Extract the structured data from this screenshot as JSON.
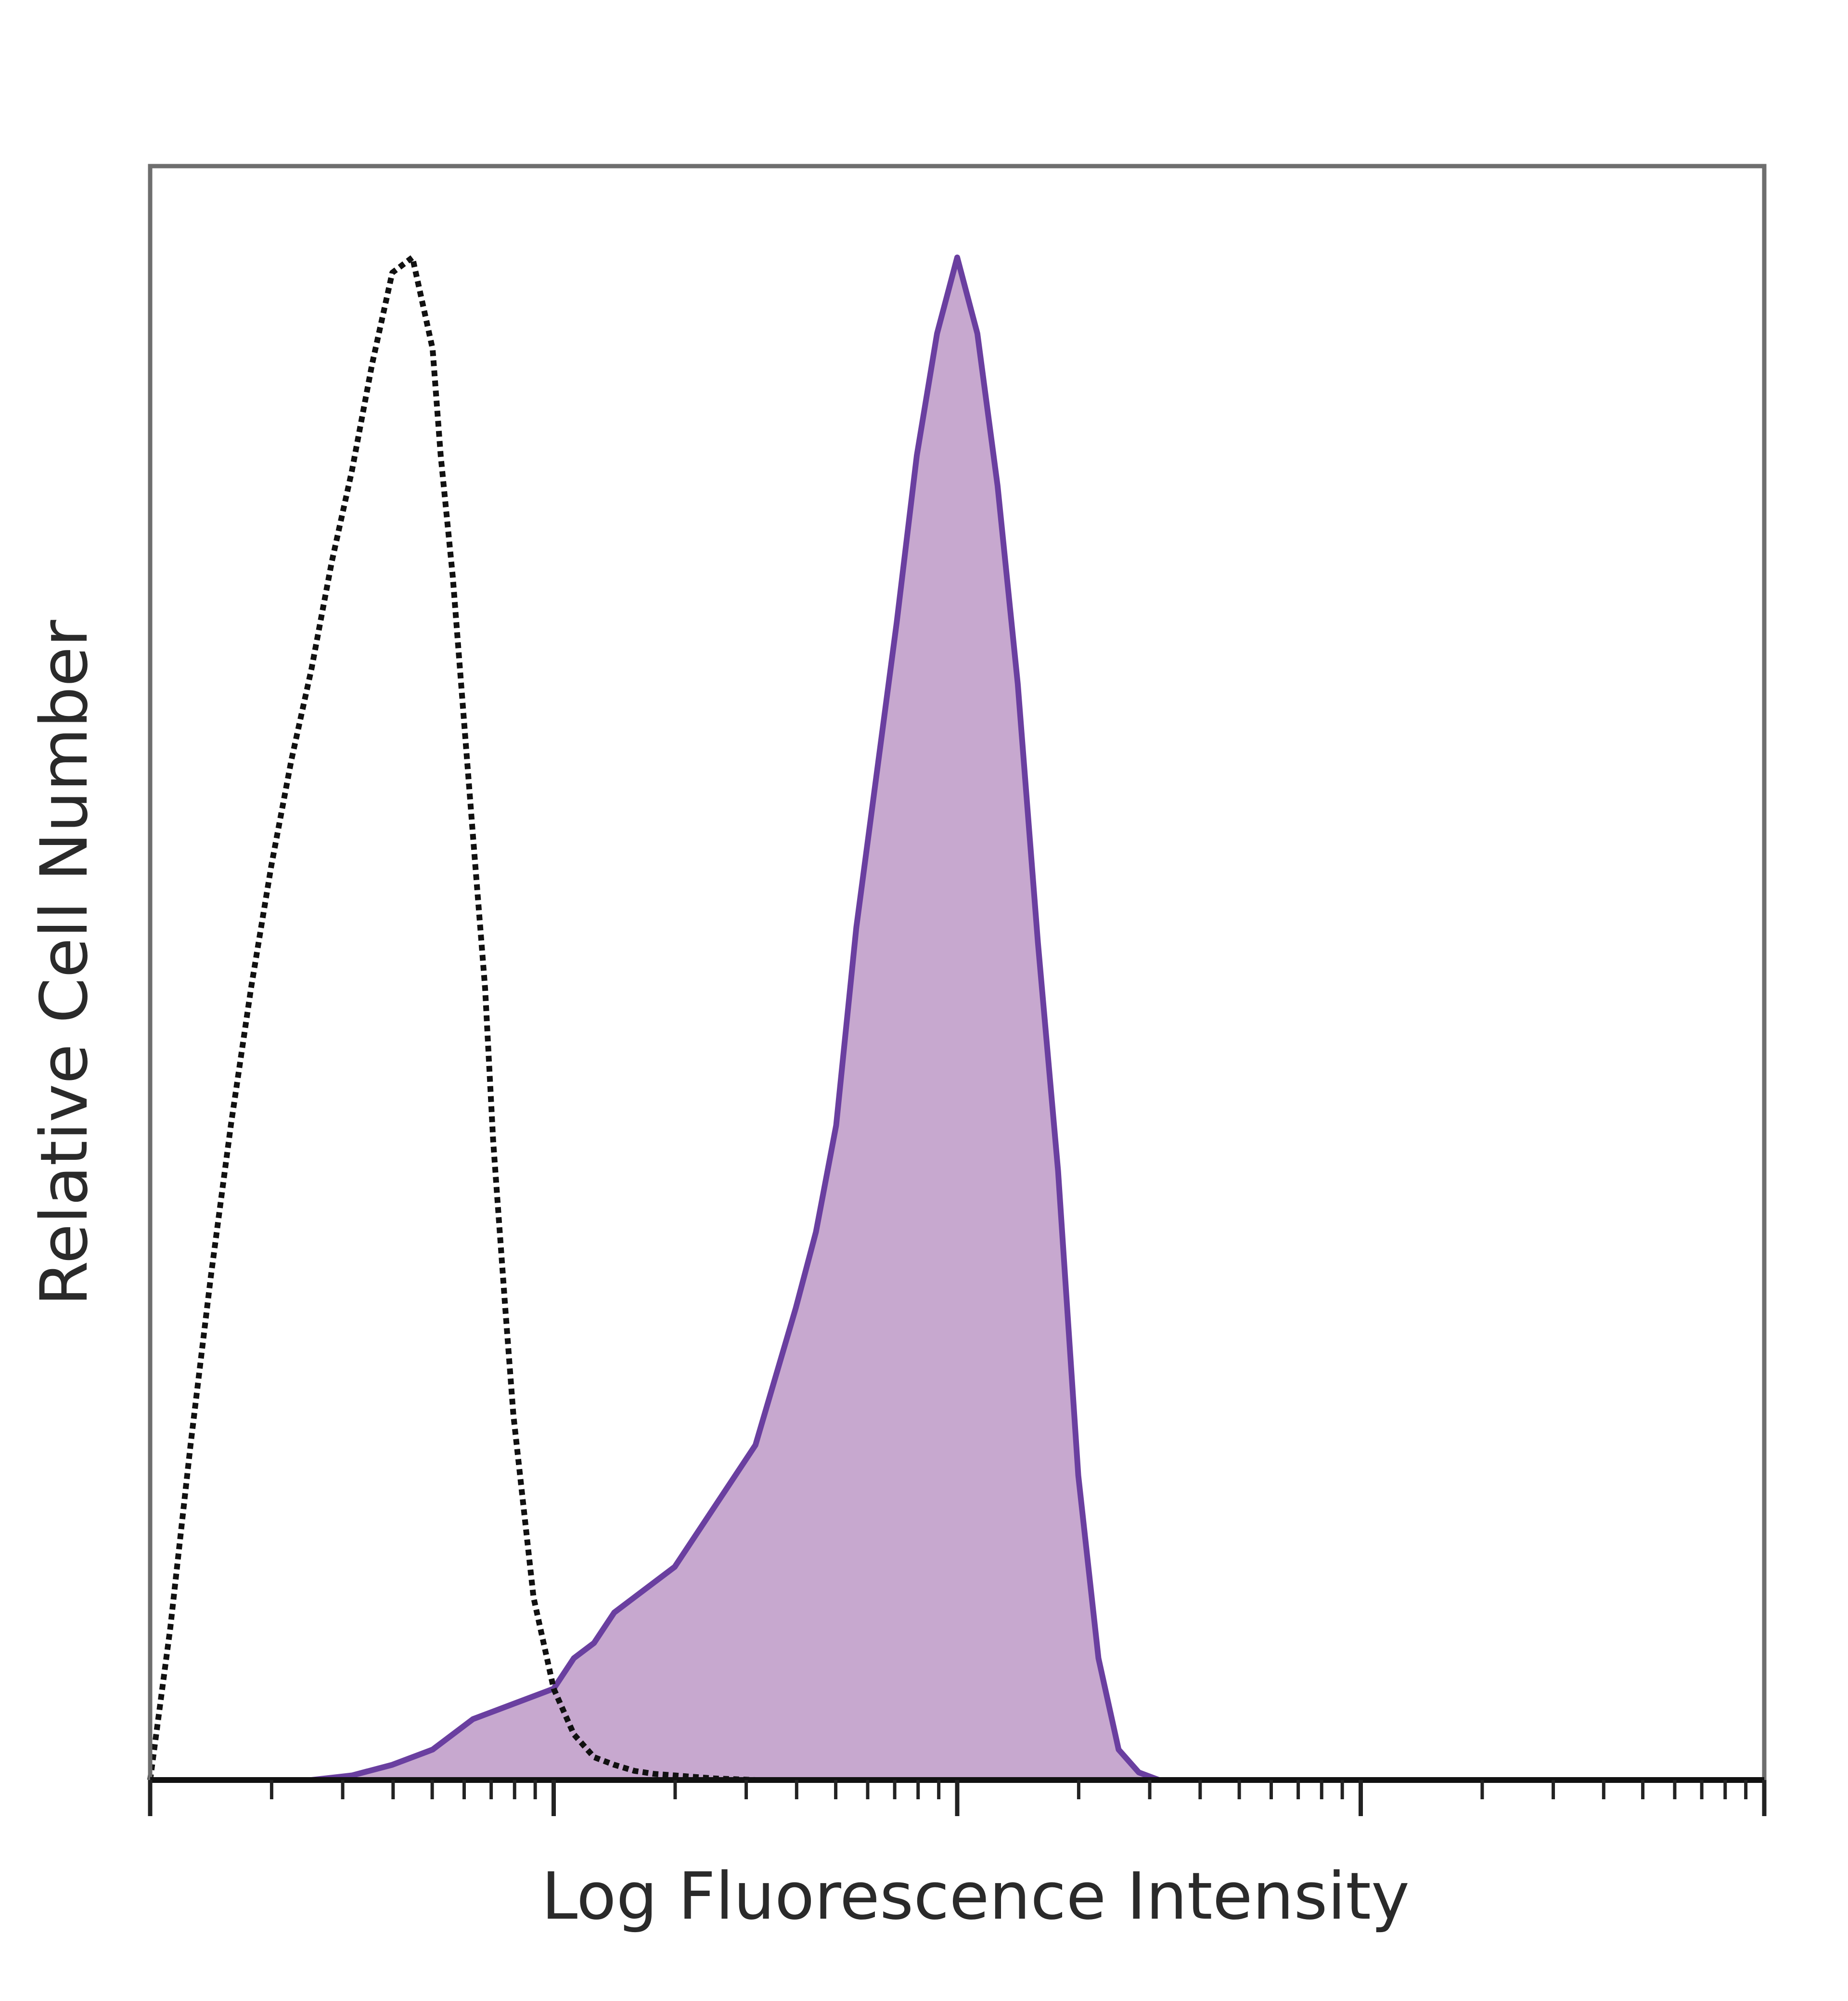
{
  "chart_data": {
    "type": "area",
    "title": "",
    "xlabel": "Log Fluorescence Intensity",
    "ylabel": "Relative Cell Number",
    "x_scale": "log",
    "xlim": [
      0,
      4
    ],
    "ylim": [
      0,
      1.06
    ],
    "grid": false,
    "legend": "none",
    "series": [
      {
        "style": "dotted-line",
        "color": "#111111",
        "x": [
          0.0,
          0.05,
          0.1,
          0.15,
          0.2,
          0.25,
          0.3,
          0.35,
          0.4,
          0.45,
          0.5,
          0.55,
          0.6,
          0.65,
          0.7,
          0.72,
          0.75,
          0.8,
          0.83,
          0.85,
          0.88,
          0.9,
          0.95,
          1.0,
          1.05,
          1.1,
          1.15,
          1.2,
          1.25,
          1.3,
          1.35,
          1.4,
          1.45,
          1.5,
          1.55,
          1.6,
          1.65,
          1.7
        ],
        "values": [
          0.0,
          0.1,
          0.22,
          0.33,
          0.43,
          0.52,
          0.6,
          0.67,
          0.73,
          0.8,
          0.86,
          0.93,
          0.99,
          1.0,
          0.94,
          0.87,
          0.79,
          0.62,
          0.52,
          0.42,
          0.31,
          0.24,
          0.12,
          0.06,
          0.03,
          0.015,
          0.01,
          0.006,
          0.004,
          0.003,
          0.002,
          0.001,
          0.0005,
          0.0,
          0.0,
          0.0,
          0.0,
          0.0
        ]
      },
      {
        "style": "filled",
        "color": "#6a3fa0",
        "fill": "#c7a8cf",
        "x": [
          0.0,
          0.4,
          0.5,
          0.6,
          0.7,
          0.8,
          0.9,
          1.0,
          1.05,
          1.1,
          1.15,
          1.2,
          1.3,
          1.4,
          1.5,
          1.6,
          1.65,
          1.7,
          1.75,
          1.8,
          1.85,
          1.9,
          1.95,
          2.0,
          2.05,
          2.1,
          2.15,
          2.2,
          2.25,
          2.3,
          2.35,
          2.4,
          2.45,
          2.5,
          2.55,
          2.6,
          2.65,
          2.7,
          2.75,
          2.8,
          2.85,
          2.9,
          2.95,
          3.0,
          3.5,
          4.0
        ],
        "values": [
          0.0,
          0.0,
          0.003,
          0.01,
          0.02,
          0.04,
          0.05,
          0.06,
          0.08,
          0.09,
          0.11,
          0.12,
          0.14,
          0.18,
          0.22,
          0.31,
          0.36,
          0.43,
          0.56,
          0.66,
          0.76,
          0.87,
          0.95,
          1.0,
          0.95,
          0.85,
          0.72,
          0.55,
          0.4,
          0.2,
          0.08,
          0.02,
          0.005,
          0.0,
          0.0,
          0.0,
          0.0,
          0.0,
          0.0,
          0.0,
          0.0,
          0.0,
          0.0,
          0.0,
          0.0,
          0.0
        ]
      }
    ]
  }
}
